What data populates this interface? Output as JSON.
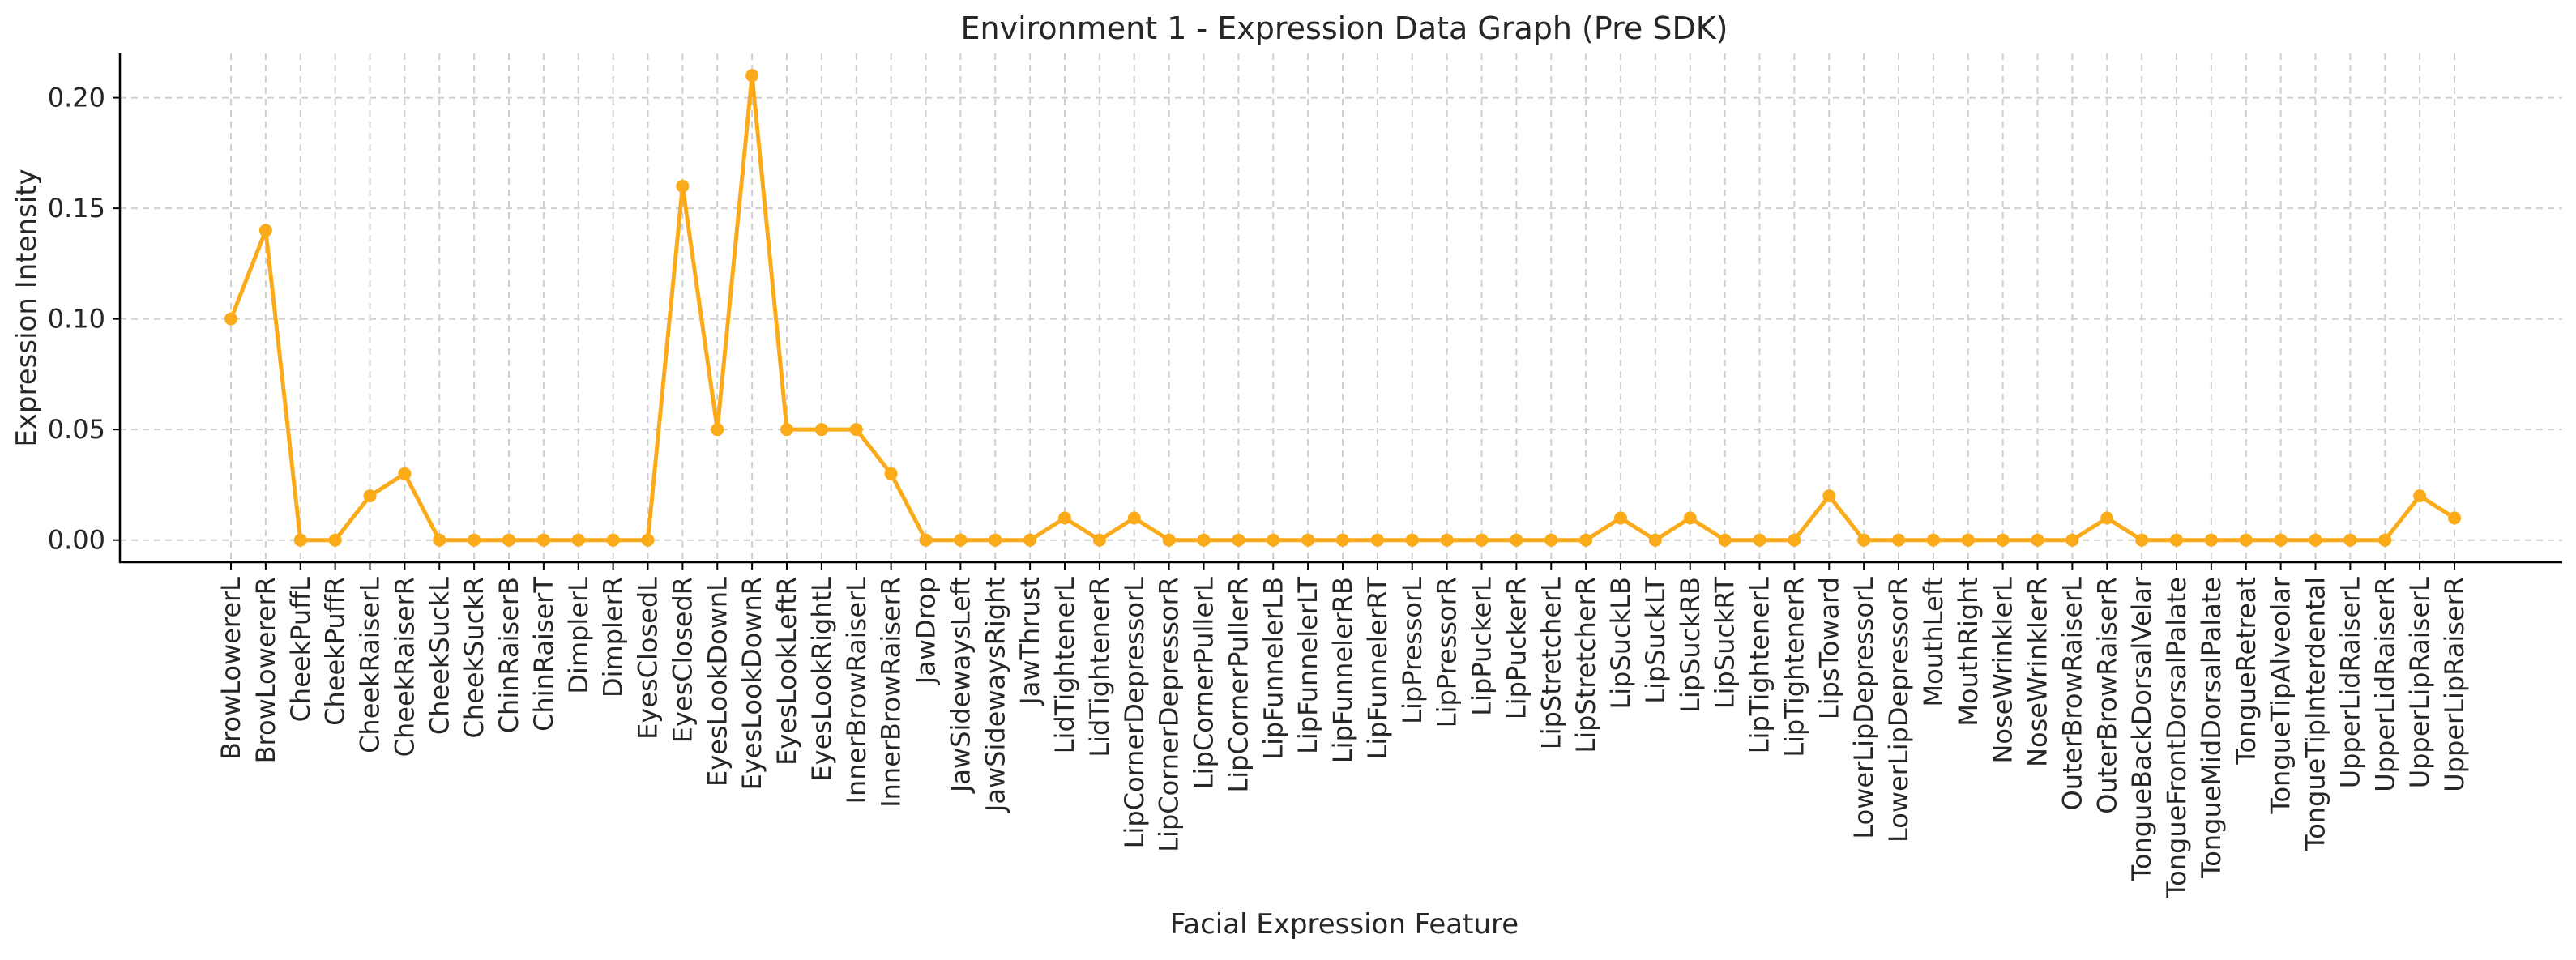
{
  "chart_data": {
    "type": "line",
    "title": "Environment 1 - Expression Data Graph (Pre SDK)",
    "xlabel": "Facial Expression Feature",
    "ylabel": "Expression Intensity",
    "ylim": [
      -0.01,
      0.22
    ],
    "yticks": [
      0.0,
      0.05,
      0.1,
      0.15,
      0.2
    ],
    "ytick_labels": [
      "0.00",
      "0.05",
      "0.10",
      "0.15",
      "0.20"
    ],
    "grid": true,
    "line_color": "#FBAA19",
    "categories": [
      "BrowLowererL",
      "BrowLowererR",
      "CheekPuffL",
      "CheekPuffR",
      "CheekRaiserL",
      "CheekRaiserR",
      "CheekSuckL",
      "CheekSuckR",
      "ChinRaiserB",
      "ChinRaiserT",
      "DimplerL",
      "DimplerR",
      "EyesClosedL",
      "EyesClosedR",
      "EyesLookDownL",
      "EyesLookDownR",
      "EyesLookLeftR",
      "EyesLookRightL",
      "InnerBrowRaiserL",
      "InnerBrowRaiserR",
      "JawDrop",
      "JawSidewaysLeft",
      "JawSidewaysRight",
      "JawThrust",
      "LidTightenerL",
      "LidTightenerR",
      "LipCornerDepressorL",
      "LipCornerDepressorR",
      "LipCornerPullerL",
      "LipCornerPullerR",
      "LipFunnelerLB",
      "LipFunnelerLT",
      "LipFunnelerRB",
      "LipFunnelerRT",
      "LipPressorL",
      "LipPressorR",
      "LipPuckerL",
      "LipPuckerR",
      "LipStretcherL",
      "LipStretcherR",
      "LipSuckLB",
      "LipSuckLT",
      "LipSuckRB",
      "LipSuckRT",
      "LipTightenerL",
      "LipTightenerR",
      "LipsToward",
      "LowerLipDepressorL",
      "LowerLipDepressorR",
      "MouthLeft",
      "MouthRight",
      "NoseWrinklerL",
      "NoseWrinklerR",
      "OuterBrowRaiserL",
      "OuterBrowRaiserR",
      "TongueBackDorsalVelar",
      "TongueFrontDorsalPalate",
      "TongueMidDorsalPalate",
      "TongueRetreat",
      "TongueTipAlveolar",
      "TongueTipInterdental",
      "UpperLidRaiserL",
      "UpperLidRaiserR",
      "UpperLipRaiserL",
      "UpperLipRaiserR"
    ],
    "values": [
      0.1,
      0.14,
      0.0,
      0.0,
      0.02,
      0.03,
      0.0,
      0.0,
      0.0,
      0.0,
      0.0,
      0.0,
      0.0,
      0.16,
      0.05,
      0.21,
      0.05,
      0.05,
      0.05,
      0.03,
      0.0,
      0.0,
      0.0,
      0.0,
      0.01,
      0.0,
      0.01,
      0.0,
      0.0,
      0.0,
      0.0,
      0.0,
      0.0,
      0.0,
      0.0,
      0.0,
      0.0,
      0.0,
      0.0,
      0.0,
      0.01,
      0.0,
      0.01,
      0.0,
      0.0,
      0.0,
      0.02,
      0.0,
      0.0,
      0.0,
      0.0,
      0.0,
      0.0,
      0.0,
      0.01,
      0.0,
      0.0,
      0.0,
      0.0,
      0.0,
      0.0,
      0.0,
      0.0,
      0.02,
      0.01
    ]
  }
}
